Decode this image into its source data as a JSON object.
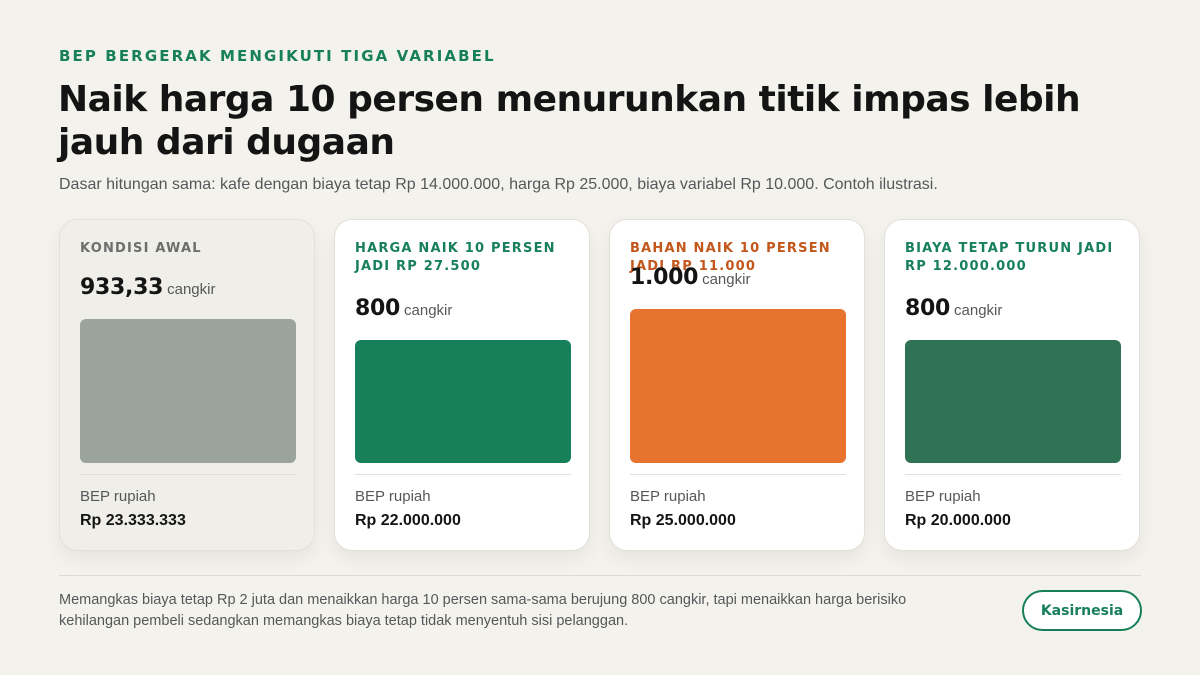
{
  "kicker": "BEP BERGERAK MENGIKUTI TIGA VARIABEL",
  "title": "Naik harga 10 persen menurunkan titik impas lebih jauh dari dugaan",
  "subtitle": "Dasar hitungan sama: kafe dengan biaya tetap Rp 14.000.000, harga Rp 25.000, biaya variabel Rp 10.000. Contoh ilustrasi.",
  "chart_data": {
    "type": "bar",
    "categories": [
      "KONDISI AWAL",
      "HARGA NAIK 10 PERSEN JADI RP 27.500",
      "BAHAN NAIK 10 PERSEN JADI RP 11.000",
      "BIAYA TETAP TURUN JADI RP 12.000.000"
    ],
    "values": [
      933.33,
      800,
      1000,
      800
    ],
    "value_labels": [
      "933,33",
      "800",
      "1.000",
      "800"
    ],
    "unit": "cangkir",
    "ylim": [
      0,
      1000
    ],
    "colors": [
      "#9aa49d",
      "#17805a",
      "#e8732e",
      "#2f7354"
    ],
    "label_colors": [
      "#6b6e6c",
      "#17805a",
      "#c2561b",
      "#17805a"
    ],
    "bep_label": "BEP rupiah",
    "bep_values": [
      "Rp 23.333.333",
      "Rp 22.000.000",
      "Rp 25.000.000",
      "Rp 20.000.000"
    ]
  },
  "footer_note": "Memangkas biaya tetap Rp 2 juta dan menaikkan harga 10 persen sama-sama berujung 800 cangkir, tapi menaikkan harga berisiko kehilangan pembeli sedangkan memangkas biaya tetap tidak menyentuh sisi pelanggan.",
  "brand": "Kasirnesia"
}
